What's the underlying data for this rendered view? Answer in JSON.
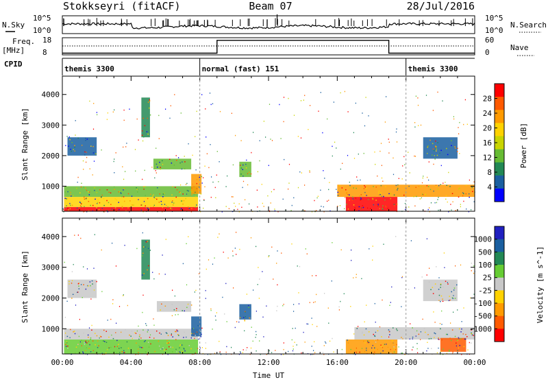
{
  "header": {
    "station": "Stokkseyri (fitACF)",
    "beam": "Beam 07",
    "date": "28/Jul/2016"
  },
  "top_panels": {
    "nsky_label": "N.Sky",
    "nsearch_label": "N.Search",
    "count_ticks": [
      "10^5",
      "10^0"
    ],
    "freq_label": "Freq.",
    "freq_unit": "[MHz]",
    "freq_ticks": [
      "18",
      "8"
    ],
    "nave_label": "Nave",
    "nave_ticks": [
      "60",
      "0"
    ],
    "cpid_label": "CPID",
    "modes": [
      {
        "label": "themis 3300",
        "start_hour": 0
      },
      {
        "label": "normal (fast) 151",
        "start_hour": 8
      },
      {
        "label": "themis 3300",
        "start_hour": 20
      }
    ],
    "nave_steps": [
      {
        "from_hour": 0,
        "to_hour": 9,
        "level": 0.1
      },
      {
        "from_hour": 9,
        "to_hour": 19,
        "level": 0.85
      },
      {
        "from_hour": 19,
        "to_hour": 24,
        "level": 0.1
      }
    ]
  },
  "chart_data": [
    {
      "type": "heatmap",
      "quantity": "Power",
      "ylabel": "Slant Range [km]",
      "colorbar_label": "Power [dB]",
      "colorbar_ticks": [
        "28",
        "24",
        "20",
        "16",
        "12",
        "8",
        "4"
      ],
      "colorbar_colors": [
        "#ff0000",
        "#ff5a00",
        "#ff9a00",
        "#ffd200",
        "#c9d400",
        "#66bb33",
        "#228855",
        "#1a5fa0",
        "#0000ff"
      ],
      "ylim": [
        180,
        4600
      ],
      "yticks": [
        1000,
        2000,
        3000,
        4000
      ],
      "xlim_hours": [
        0,
        24
      ],
      "regions": [
        {
          "t0": 0.1,
          "t1": 7.9,
          "r0": 180,
          "r1": 320,
          "color": "#ff0000"
        },
        {
          "t0": 0.1,
          "t1": 7.9,
          "r0": 320,
          "r1": 650,
          "color": "#ffd200"
        },
        {
          "t0": 0.1,
          "t1": 7.9,
          "r0": 650,
          "r1": 1000,
          "color": "#66bb33"
        },
        {
          "t0": 0.3,
          "t1": 2.0,
          "r0": 2000,
          "r1": 2600,
          "color": "#1a5fa0"
        },
        {
          "t0": 4.6,
          "t1": 5.1,
          "r0": 2600,
          "r1": 3900,
          "color": "#228855"
        },
        {
          "t0": 5.3,
          "t1": 7.5,
          "r0": 1550,
          "r1": 1900,
          "color": "#66bb33"
        },
        {
          "t0": 7.5,
          "t1": 8.1,
          "r0": 750,
          "r1": 1400,
          "color": "#ff9a00"
        },
        {
          "t0": 10.3,
          "t1": 11.0,
          "r0": 1300,
          "r1": 1800,
          "color": "#66bb33"
        },
        {
          "t0": 16.5,
          "t1": 19.5,
          "r0": 180,
          "r1": 650,
          "color": "#ff0000"
        },
        {
          "t0": 16.0,
          "t1": 24.0,
          "r0": 650,
          "r1": 1050,
          "color": "#ff9a00"
        },
        {
          "t0": 21.0,
          "t1": 23.0,
          "r0": 1900,
          "r1": 2600,
          "color": "#1a5fa0"
        }
      ]
    },
    {
      "type": "heatmap",
      "quantity": "Velocity",
      "ylabel": "Slant Range [km]",
      "xlabel": "Time UT",
      "colorbar_label": "Velocity [m s^-1]",
      "colorbar_ticks": [
        "1000",
        "500",
        "100",
        "25",
        "-25",
        "-100",
        "-500",
        "-1000"
      ],
      "colorbar_colors": [
        "#2020c0",
        "#1a5fa0",
        "#228855",
        "#66cc33",
        "#c8c8c8",
        "#ffd200",
        "#ff9a00",
        "#ff5a00",
        "#ff0000"
      ],
      "ylim": [
        180,
        4600
      ],
      "yticks": [
        1000,
        2000,
        3000,
        4000
      ],
      "xlim_hours": [
        0,
        24
      ],
      "xtick_labels": [
        "00:00",
        "04:00",
        "08:00",
        "12:00",
        "16:00",
        "20:00",
        "00:00"
      ],
      "regions": [
        {
          "t0": 0.1,
          "t1": 7.9,
          "r0": 180,
          "r1": 650,
          "color": "#66cc33"
        },
        {
          "t0": 0.1,
          "t1": 7.9,
          "r0": 650,
          "r1": 1000,
          "color": "#c8c8c8"
        },
        {
          "t0": 0.3,
          "t1": 2.0,
          "r0": 2000,
          "r1": 2600,
          "color": "#c8c8c8"
        },
        {
          "t0": 4.6,
          "t1": 5.1,
          "r0": 2600,
          "r1": 3900,
          "color": "#228855"
        },
        {
          "t0": 5.5,
          "t1": 7.5,
          "r0": 1550,
          "r1": 1900,
          "color": "#c8c8c8"
        },
        {
          "t0": 7.5,
          "t1": 8.1,
          "r0": 750,
          "r1": 1400,
          "color": "#1a5fa0"
        },
        {
          "t0": 10.3,
          "t1": 11.0,
          "r0": 1300,
          "r1": 1800,
          "color": "#1a5fa0"
        },
        {
          "t0": 16.5,
          "t1": 19.5,
          "r0": 180,
          "r1": 650,
          "color": "#ff9a00"
        },
        {
          "t0": 17.0,
          "t1": 24.0,
          "r0": 650,
          "r1": 1050,
          "color": "#c8c8c8"
        },
        {
          "t0": 22.0,
          "t1": 23.5,
          "r0": 250,
          "r1": 700,
          "color": "#ff5a00"
        },
        {
          "t0": 21.0,
          "t1": 23.0,
          "r0": 1900,
          "r1": 2600,
          "color": "#c8c8c8"
        }
      ]
    }
  ]
}
